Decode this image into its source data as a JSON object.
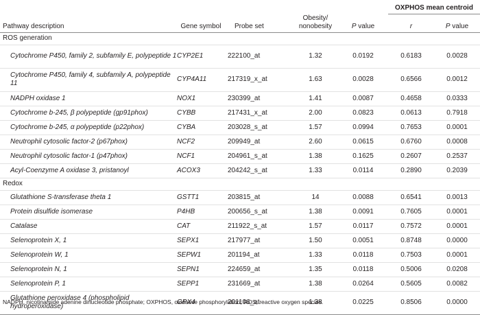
{
  "headers": {
    "pathway": "Pathway description",
    "gene": "Gene symbol",
    "probe": "Probe set",
    "obesity": "Obesity/ nonobesity",
    "p": "P value",
    "ox_group": "OXPHOS mean centroid",
    "r": "r",
    "ox_p": "P value"
  },
  "sections": [
    {
      "title": "ROS generation",
      "rows": [
        {
          "desc": "Cytochrome P450, family 2, subfamily E, polypeptide 1",
          "gene": "CYP2E1",
          "probe": "222100_at",
          "ratio": "1.32",
          "p": "0.0192",
          "r": "0.6183",
          "ox_p": "0.0028"
        },
        {
          "desc": "Cytochrome P450, family 4, subfamily A, polypeptide 11",
          "gene": "CYP4A11",
          "probe": "217319_x_at",
          "ratio": "1.63",
          "p": "0.0028",
          "r": "0.6566",
          "ox_p": "0.0012"
        },
        {
          "desc": "NADPH oxidase 1",
          "gene": "NOX1",
          "probe": "230399_at",
          "ratio": "1.41",
          "p": "0.0087",
          "r": "0.4658",
          "ox_p": "0.0333"
        },
        {
          "desc": "Cytochrome b-245, β polypeptide (gp91phox)",
          "gene": "CYBB",
          "probe": "217431_x_at",
          "ratio": "2.00",
          "p": "0.0823",
          "r": "0.0613",
          "ox_p": "0.7918"
        },
        {
          "desc": "Cytochrome b-245, α polypeptide (p22phox)",
          "gene": "CYBA",
          "probe": "203028_s_at",
          "ratio": "1.57",
          "p": "0.0994",
          "r": "0.7653",
          "ox_p": "0.0001"
        },
        {
          "desc": "Neutrophil cytosolic factor-2 (p67phox)",
          "gene": "NCF2",
          "probe": "209949_at",
          "ratio": "2.60",
          "p": "0.0615",
          "r": "0.6760",
          "ox_p": "0.0008"
        },
        {
          "desc": "Neutrophil cytosolic factor-1 (p47phox)",
          "gene": "NCF1",
          "probe": "204961_s_at",
          "ratio": "1.38",
          "p": "0.1625",
          "r": "0.2607",
          "ox_p": "0.2537"
        },
        {
          "desc": "Acyl-Coenzyme A oxidase 3, pristanoyl",
          "gene": "ACOX3",
          "probe": "204242_s_at",
          "ratio": "1.33",
          "p": "0.0114",
          "r": "0.2890",
          "ox_p": "0.2039"
        }
      ]
    },
    {
      "title": "Redox",
      "rows": [
        {
          "desc": "Glutathione S-transferase theta 1",
          "gene": "GSTT1",
          "probe": "203815_at",
          "ratio": "14",
          "p": "0.0088",
          "r": "0.6541",
          "ox_p": "0.0013"
        },
        {
          "desc": "Protein disulfide isomerase",
          "gene": "P4HB",
          "probe": "200656_s_at",
          "ratio": "1.38",
          "p": "0.0091",
          "r": "0.7605",
          "ox_p": "0.0001"
        },
        {
          "desc": "Catalase",
          "gene": "CAT",
          "probe": "211922_s_at",
          "ratio": "1.57",
          "p": "0.0117",
          "r": "0.7572",
          "ox_p": "0.0001"
        },
        {
          "desc": "Selenoprotein X, 1",
          "gene": "SEPX1",
          "probe": "217977_at",
          "ratio": "1.50",
          "p": "0.0051",
          "r": "0.8748",
          "ox_p": "0.0000"
        },
        {
          "desc": "Selenoprotein W, 1",
          "gene": "SEPW1",
          "probe": "201194_at",
          "ratio": "1.33",
          "p": "0.0118",
          "r": "0.7503",
          "ox_p": "0.0001"
        },
        {
          "desc": "Selenoprotein N, 1",
          "gene": "SEPN1",
          "probe": "224659_at",
          "ratio": "1.35",
          "p": "0.0118",
          "r": "0.5006",
          "ox_p": "0.0208"
        },
        {
          "desc": "Selenoprotein P, 1",
          "gene": "SEPP1",
          "probe": "231669_at",
          "ratio": "1.38",
          "p": "0.0264",
          "r": "0.5605",
          "ox_p": "0.0082"
        },
        {
          "desc": "Glutathione peroxidase 4 (phospholipid hydroperoxidase)",
          "gene": "GPX4",
          "probe": "201106_at",
          "ratio": "1.38",
          "p": "0.0225",
          "r": "0.8506",
          "ox_p": "0.0000"
        }
      ]
    }
  ],
  "footnote": "NADPH, nicotinamide adenine dinucleotide phosphate; OXPHOS, oxidative phosphorylation; ROS, reactive oxygen species."
}
